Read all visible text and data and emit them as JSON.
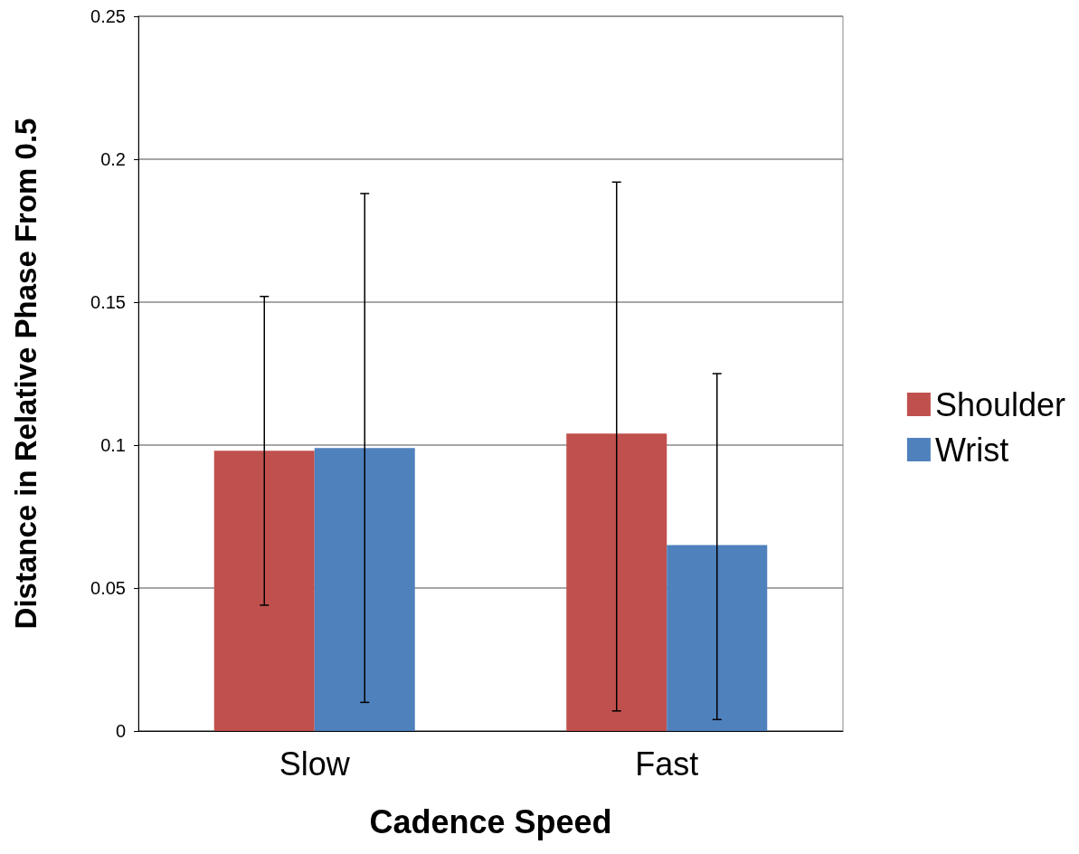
{
  "chart_data": {
    "type": "bar",
    "xlabel": "Cadence Speed",
    "ylabel": "Distance in Relative Phase From 0.5",
    "categories": [
      "Slow",
      "Fast"
    ],
    "series": [
      {
        "name": "Shoulder",
        "color": "#c0504d",
        "values": [
          0.098,
          0.104
        ],
        "errors": [
          [
            0.044,
            0.152
          ],
          [
            0.007,
            0.192
          ]
        ]
      },
      {
        "name": "Wrist",
        "color": "#4f81bd",
        "values": [
          0.099,
          0.065
        ],
        "errors": [
          [
            0.01,
            0.188
          ],
          [
            0.004,
            0.125
          ]
        ]
      }
    ],
    "ylim": [
      0,
      0.25
    ],
    "yticks": [
      0,
      0.05,
      0.1,
      0.15,
      0.2,
      0.25
    ],
    "grid": "y",
    "legend": "right"
  }
}
